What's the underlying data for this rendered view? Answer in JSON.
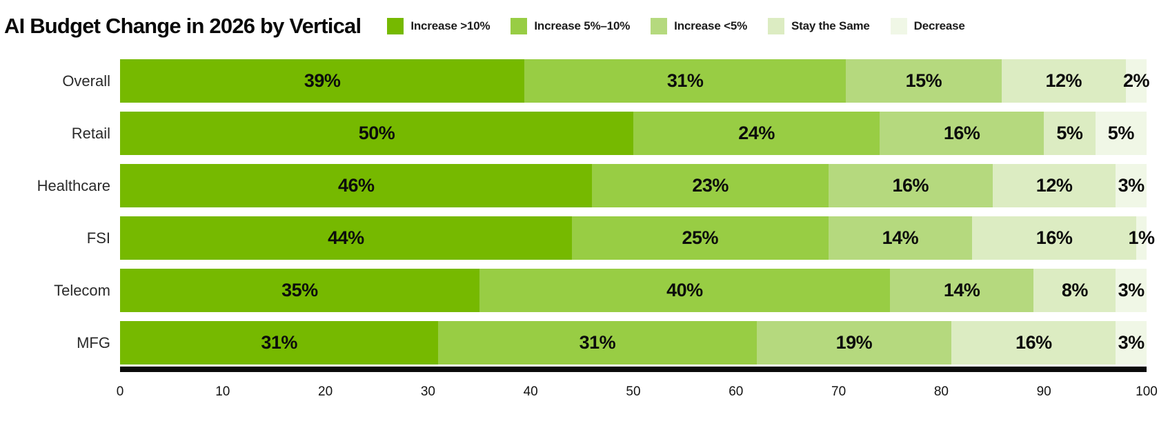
{
  "title": "AI Budget Change in 2026 by Vertical",
  "legend": [
    {
      "label": "Increase >10%",
      "color": "#76b900"
    },
    {
      "label": "Increase 5%–10%",
      "color": "#98cd44"
    },
    {
      "label": "Increase <5%",
      "color": "#b5d97e"
    },
    {
      "label": "Stay the Same",
      "color": "#dcecc2"
    },
    {
      "label": "Decrease",
      "color": "#f0f7e6"
    }
  ],
  "chart_data": {
    "type": "bar",
    "orientation": "horizontal",
    "stacked": true,
    "title": "AI Budget Change in 2026 by Vertical",
    "categories": [
      "Overall",
      "Retail",
      "Healthcare",
      "FSI",
      "Telecom",
      "MFG"
    ],
    "series": [
      {
        "name": "Increase >10%",
        "color": "#76b900",
        "values": [
          39,
          50,
          46,
          44,
          35,
          31
        ]
      },
      {
        "name": "Increase 5%–10%",
        "color": "#98cd44",
        "values": [
          31,
          24,
          23,
          25,
          40,
          31
        ]
      },
      {
        "name": "Increase <5%",
        "color": "#b5d97e",
        "values": [
          15,
          16,
          16,
          14,
          14,
          19
        ]
      },
      {
        "name": "Stay the Same",
        "color": "#dcecc2",
        "values": [
          12,
          5,
          12,
          16,
          8,
          16
        ]
      },
      {
        "name": "Decrease",
        "color": "#f0f7e6",
        "values": [
          2,
          5,
          3,
          1,
          3,
          3
        ]
      }
    ],
    "data_label_format": "{value}%",
    "xlabel": "",
    "ylabel": "",
    "xlim": [
      0,
      100
    ],
    "x_ticks": [
      0,
      10,
      20,
      30,
      40,
      50,
      60,
      70,
      80,
      90,
      100
    ],
    "grid": false,
    "legend_position": "top-right",
    "axis_line_color": "#0b0b0b",
    "label_text_color": "#0c0c0c"
  }
}
